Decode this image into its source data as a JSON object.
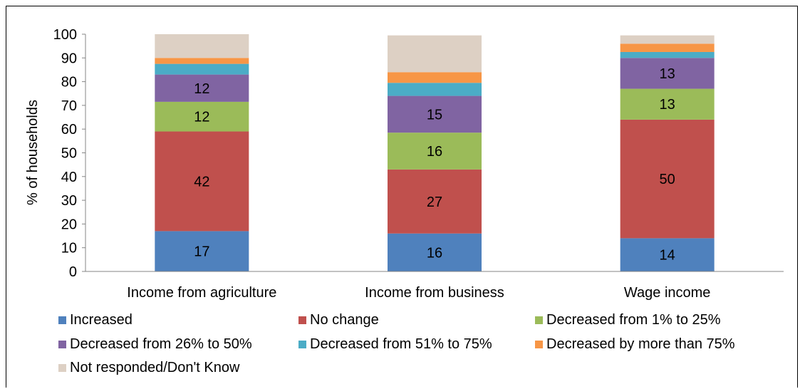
{
  "chart_data": {
    "type": "bar",
    "stacked": true,
    "title": "",
    "xlabel": "",
    "ylabel": "% of households",
    "ylim": [
      0,
      100
    ],
    "yticks": [
      0,
      10,
      20,
      30,
      40,
      50,
      60,
      70,
      80,
      90,
      100
    ],
    "grid": false,
    "legend_position": "bottom",
    "categories": [
      "Income from agriculture",
      "Income from business",
      "Wage income"
    ],
    "series": [
      {
        "name": "Increased",
        "color": "#4F81BD",
        "values": [
          17,
          16,
          14
        ],
        "labels": [
          "17",
          "16",
          "14"
        ]
      },
      {
        "name": "No change",
        "color": "#C0504D",
        "values": [
          42,
          27,
          50
        ],
        "labels": [
          "42",
          "27",
          "50"
        ]
      },
      {
        "name": "Decreased from 1% to 25%",
        "color": "#9BBB59",
        "values": [
          12.5,
          15.5,
          13
        ],
        "labels": [
          "12",
          "16",
          "13"
        ]
      },
      {
        "name": "Decreased from 26% to 50%",
        "color": "#8064A2",
        "values": [
          11.5,
          15.5,
          13
        ],
        "labels": [
          "12",
          "15",
          "13"
        ]
      },
      {
        "name": "Decreased from 51% to 75%",
        "color": "#4BACC6",
        "values": [
          4.5,
          5.5,
          2.5
        ],
        "labels": [
          "",
          "",
          ""
        ]
      },
      {
        "name": "Decreased by more than 75%",
        "color": "#F79646",
        "values": [
          2.5,
          4.5,
          3.5
        ],
        "labels": [
          "",
          "",
          ""
        ]
      },
      {
        "name": "Not responded/Don't Know",
        "color": "#DDD0C4",
        "values": [
          10,
          15.5,
          3.5
        ],
        "labels": [
          "",
          "",
          ""
        ]
      }
    ]
  }
}
